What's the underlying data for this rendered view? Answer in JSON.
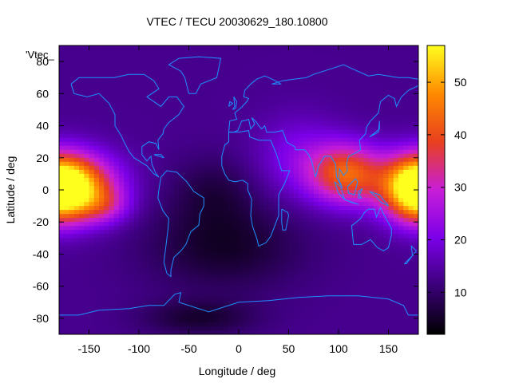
{
  "chart_data": {
    "type": "heatmap",
    "title": "VTEC / TECU 20030629_180.10800",
    "xlabel": "Longitude / deg",
    "ylabel": "Latitude / deg",
    "legend_label": "'Vtec_",
    "xlim": [
      -180,
      180
    ],
    "ylim": [
      -90,
      90
    ],
    "xticks": [
      -150,
      -100,
      -50,
      0,
      50,
      100,
      150
    ],
    "yticks": [
      -80,
      -60,
      -40,
      -20,
      0,
      20,
      40,
      60,
      80
    ],
    "colorbar": {
      "min": 2,
      "max": 57,
      "ticks": [
        10,
        20,
        30,
        40,
        50
      ]
    },
    "colormap": [
      "#000000",
      "#3a0078",
      "#7b00e8",
      "#c81ed8",
      "#e8401e",
      "#ff8a00",
      "#ffff1e"
    ],
    "coastline_color": "#1e90ff",
    "field_components": {
      "background": 13,
      "peaks": [
        {
          "lon": -170,
          "lat": 2,
          "amp": 42,
          "sx": 32,
          "sy": 14
        },
        {
          "lon": -135,
          "lat": -10,
          "amp": 10,
          "sx": 18,
          "sy": 8
        },
        {
          "lon": 108,
          "lat": 10,
          "amp": 28,
          "sx": 26,
          "sy": 13
        },
        {
          "lon": 178,
          "lat": 0,
          "amp": 24,
          "sx": 20,
          "sy": 14
        },
        {
          "lon": 60,
          "lat": 20,
          "amp": 8,
          "sx": 30,
          "sy": 18
        }
      ],
      "troughs": [
        {
          "lon": -15,
          "lat": -35,
          "amp": 8,
          "sx": 55,
          "sy": 20
        },
        {
          "lon": -40,
          "lat": -80,
          "amp": 7,
          "sx": 40,
          "sy": 8
        },
        {
          "lon": -25,
          "lat": 0,
          "amp": 5,
          "sx": 30,
          "sy": 15
        }
      ]
    }
  }
}
